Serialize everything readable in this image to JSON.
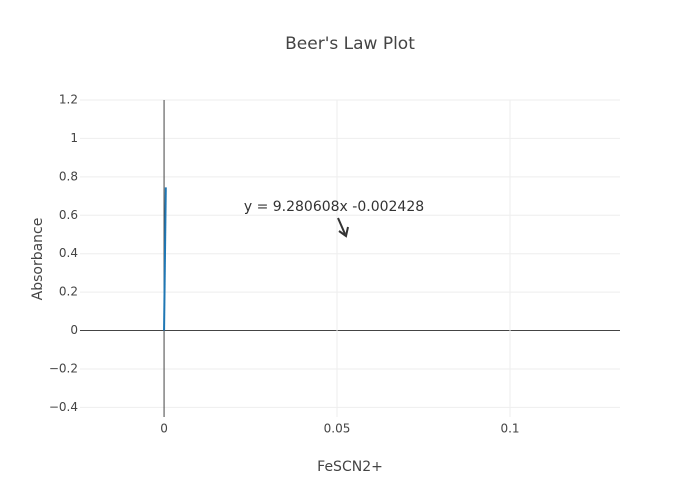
{
  "chart_data": {
    "type": "line",
    "title": "Beer's Law Plot",
    "x_label": "FeSCN2+",
    "y_label": "Absorbance",
    "x": [
      0,
      0.0005
    ],
    "series": [
      {
        "color": "#1f77b4",
        "values": [
          0,
          0.745
        ]
      }
    ],
    "annotation": "y = 9.280608x -0.002428",
    "xlim": [
      -0.0243,
      0.1318
    ],
    "ylim": [
      -0.45,
      1.2
    ],
    "xticks": [
      0,
      0.05,
      0.1
    ],
    "yticks": [
      {
        "value": -0.4,
        "label": "−0.4"
      },
      {
        "value": -0.2,
        "label": "−0.2"
      },
      0,
      0.2,
      0.4,
      0.6,
      0.8,
      1,
      1.2
    ],
    "grid": true
  }
}
